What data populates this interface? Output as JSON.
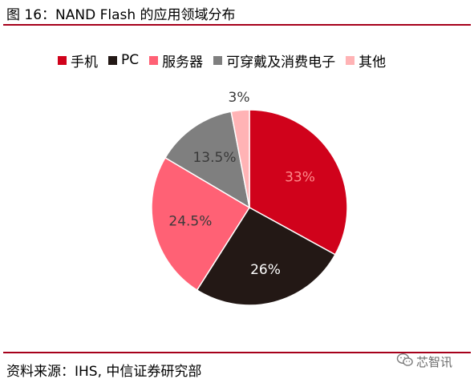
{
  "header": {
    "title": "图 16：NAND Flash 的应用领域分布"
  },
  "chart_data": {
    "type": "pie",
    "title": "",
    "labels": [
      "手机",
      "PC",
      "服务器",
      "可穿戴及消费电子",
      "其他"
    ],
    "values": [
      33,
      26,
      24.5,
      13.5,
      3
    ],
    "data_labels": [
      "33%",
      "26%",
      "24.5%",
      "13.5%",
      "3%"
    ],
    "colors": [
      "#d0021b",
      "#231815",
      "#ff6175",
      "#7f7f7f",
      "#ffb3b5"
    ],
    "label_colors": [
      "#ff8a8a",
      "#ffffff",
      "#3a3a3a",
      "#3a3a3a",
      "#3a3a3a"
    ],
    "legend_position": "top",
    "start_angle_deg": 0,
    "direction": "clockwise"
  },
  "footer": {
    "source": "资料来源：IHS, 中信证券研究部",
    "watermark": "芯智讯",
    "watermark_icon": "wechat-icon"
  },
  "theme": {
    "accent": "#a6001b"
  }
}
